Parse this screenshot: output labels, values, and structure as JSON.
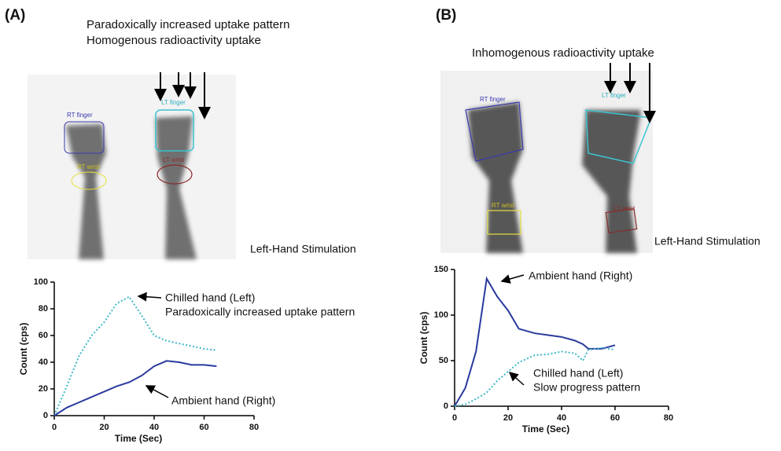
{
  "panels": [
    {
      "label": "(A)",
      "headline": [
        "Paradoxically increased uptake pattern",
        "Homogenous radioactivity uptake"
      ],
      "roi_labels": [
        "RT finger",
        "LT finger",
        "RT wrist",
        "LT wrist"
      ],
      "caption": "Left-Hand Stimulation"
    },
    {
      "label": "(B)",
      "headline": [
        "Inhomogenous radioactivity uptake"
      ],
      "roi_labels": [
        "RT finger",
        "LT finger",
        "RT wrist",
        "LT wrist"
      ],
      "caption": "Left-Hand Stimulation"
    }
  ],
  "chart_data": [
    {
      "type": "line",
      "x_label": "Time (Sec)",
      "y_label": "Count (cps)",
      "x": [
        0,
        5,
        10,
        15,
        20,
        25,
        30,
        35,
        40,
        45,
        50,
        55,
        60,
        65
      ],
      "xlim": [
        0,
        80
      ],
      "xticks": [
        0,
        20,
        40,
        60,
        80
      ],
      "ylim": [
        0,
        100
      ],
      "yticks": [
        0,
        20,
        40,
        60,
        80,
        100
      ],
      "series": [
        {
          "name": "Chilled hand (Left)",
          "note": "Paradoxically increased uptake pattern",
          "color": "#3bb8c8",
          "style": "dotted",
          "values": [
            0,
            22,
            45,
            60,
            70,
            84,
            89,
            75,
            60,
            56,
            54,
            52,
            50,
            49
          ]
        },
        {
          "name": "Ambient hand (Right)",
          "color": "#2b3a9e",
          "style": "solid",
          "values": [
            0,
            6,
            10,
            14,
            18,
            22,
            25,
            30,
            37,
            41,
            40,
            38,
            38,
            37
          ]
        }
      ]
    },
    {
      "type": "line",
      "x_label": "Time (Sec)",
      "y_label": "Count (cps)",
      "x": [
        0,
        4,
        8,
        12,
        16,
        20,
        24,
        30,
        35,
        40,
        45,
        48,
        50,
        55,
        60
      ],
      "xlim": [
        0,
        80
      ],
      "xticks": [
        0,
        20,
        40,
        60,
        80
      ],
      "ylim": [
        0,
        150
      ],
      "yticks": [
        0,
        50,
        100,
        150
      ],
      "series": [
        {
          "name": "Ambient hand (Right)",
          "color": "#2b3a9e",
          "style": "solid",
          "values": [
            0,
            20,
            60,
            140,
            120,
            105,
            85,
            80,
            78,
            76,
            72,
            68,
            63,
            63,
            67
          ]
        },
        {
          "name": "Chilled hand (Left)",
          "note": "Slow progress pattern",
          "color": "#3bb8c8",
          "style": "dotted",
          "values": [
            0,
            2,
            8,
            15,
            28,
            38,
            48,
            56,
            57,
            60,
            58,
            50,
            62,
            64,
            62
          ]
        }
      ]
    }
  ]
}
